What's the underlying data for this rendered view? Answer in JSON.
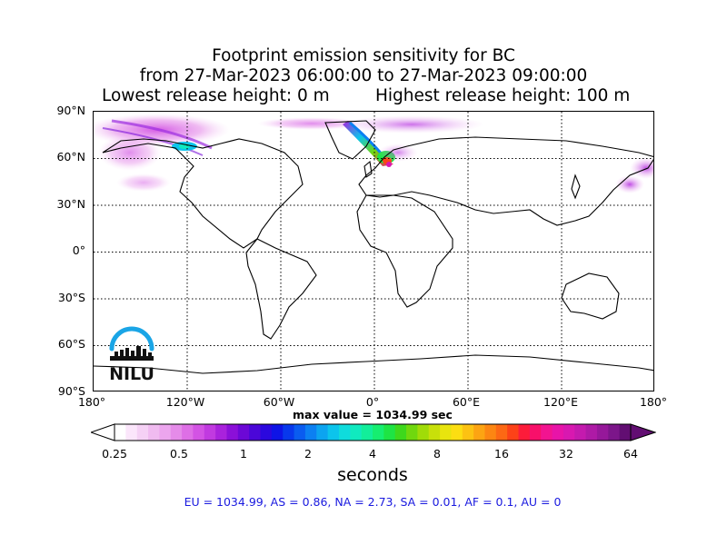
{
  "title": {
    "line1": "Footprint emission sensitivity for BC",
    "line2": "from 27-Mar-2023 06:00:00 to 27-Mar-2023 09:00:00",
    "lowest": "Lowest release height: 0 m",
    "highest": "Highest release height: 100 m"
  },
  "map": {
    "lat_labels": [
      "90°N",
      "60°N",
      "30°N",
      "0°",
      "30°S",
      "60°S",
      "90°S"
    ],
    "lon_labels": [
      "180°",
      "120°W",
      "60°W",
      "0°",
      "60°E",
      "120°E",
      "180°"
    ],
    "gridlines": "dotted",
    "ocean_color": "#ffffff"
  },
  "max_value": "max value = 1034.99 sec",
  "colorbar": {
    "tick_labels": [
      "0.25",
      "0.5",
      "1",
      "2",
      "4",
      "8",
      "16",
      "32",
      "64"
    ],
    "units": "seconds",
    "colors": [
      "#ffffff",
      "#fbe6fb",
      "#f5d1f5",
      "#f0bbf0",
      "#eca5ee",
      "#e58be9",
      "#de6fe6",
      "#d353e4",
      "#c13ae0",
      "#a922dc",
      "#8b10d8",
      "#6c08d6",
      "#4b07d8",
      "#2b08de",
      "#0e14e6",
      "#0838ec",
      "#0a5cf0",
      "#0c80f2",
      "#0ca4f0",
      "#0cc4ec",
      "#0fdcdc",
      "#10eabf",
      "#12ee9a",
      "#16ee70",
      "#1ee444",
      "#3ed81c",
      "#70d80e",
      "#a0dc08",
      "#c8e00a",
      "#e8e40e",
      "#fcde12",
      "#fcc212",
      "#fca412",
      "#fc8612",
      "#fc6814",
      "#fc4218",
      "#fc1c3a",
      "#f8106a",
      "#f21490",
      "#e814a8",
      "#d818b0",
      "#c41aae",
      "#ae1aa6",
      "#96189a",
      "#7c168a",
      "#620e72"
    ],
    "extend_color": "#620e72"
  },
  "stats": "EU = 1034.99,  AS = 0.86,  NA = 2.73,  SA = 0.01,  AF = 0.1,  AU = 0",
  "logo": {
    "text": "NILU",
    "arc_color": "#1aa5e6"
  }
}
